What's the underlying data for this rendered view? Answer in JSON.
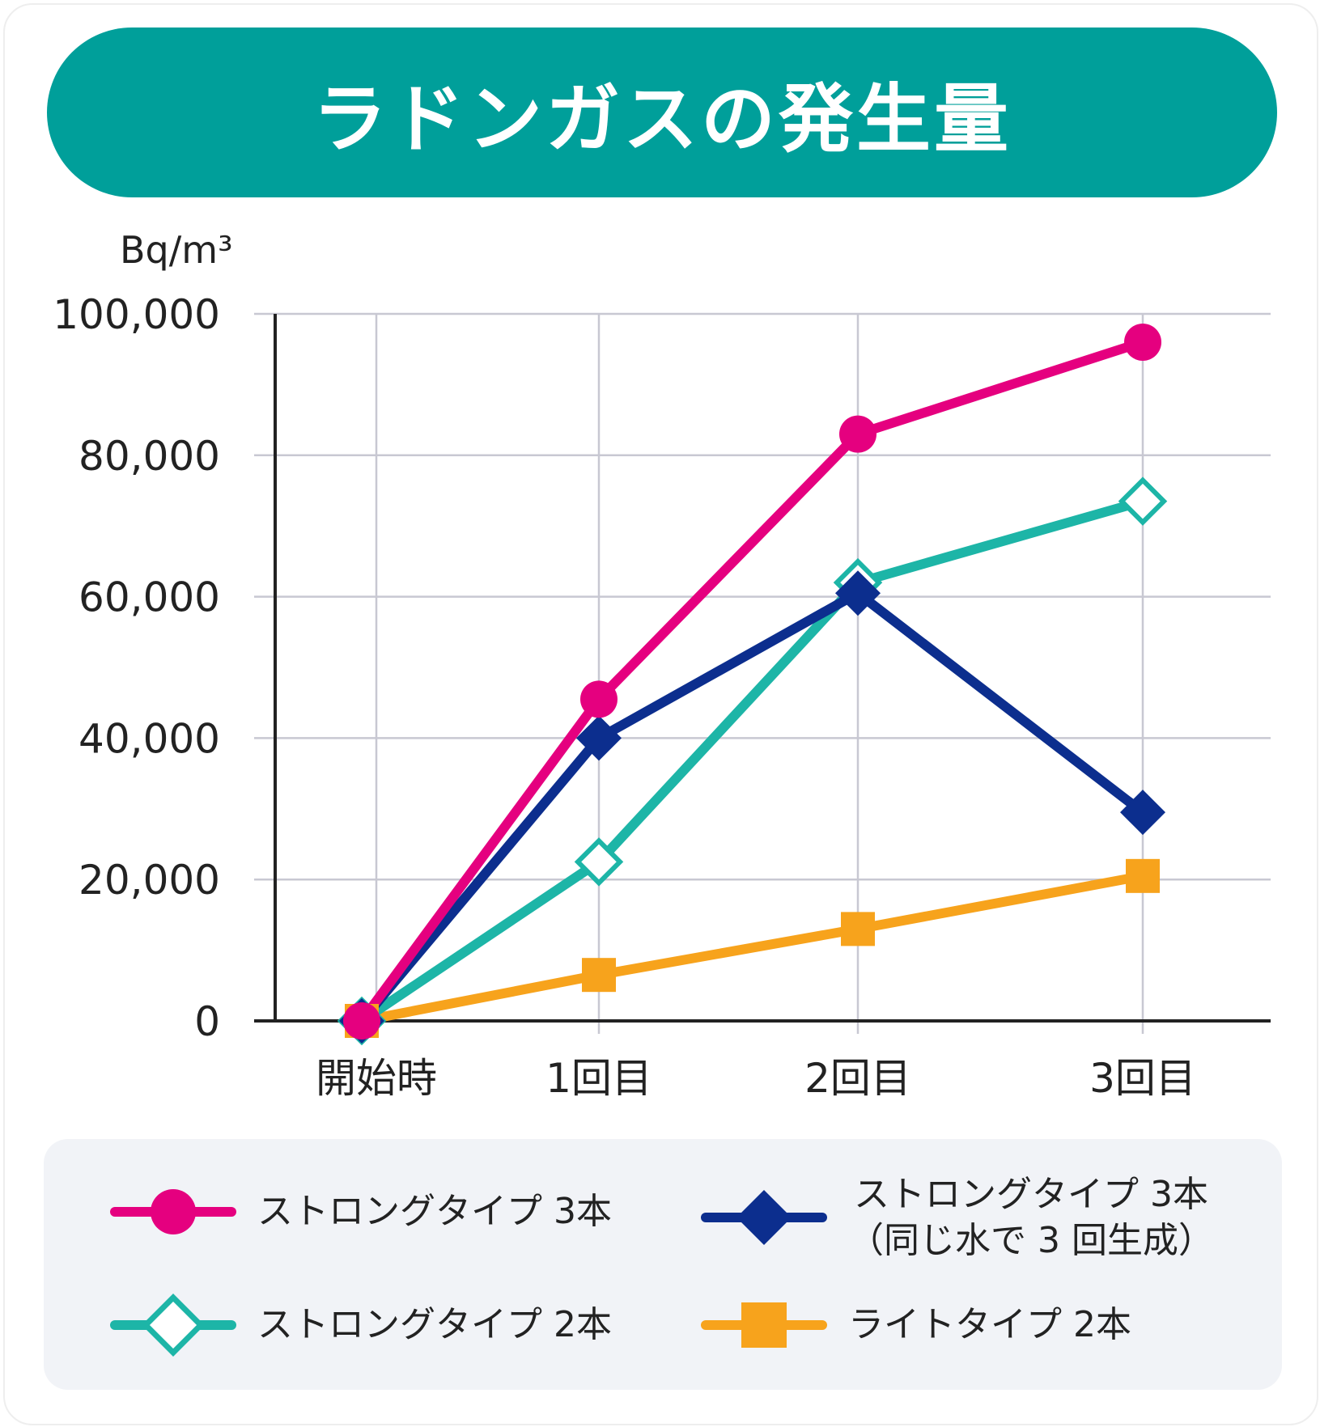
{
  "title": "ラドンガスの発生量",
  "colors": {
    "title_bg": "#009f9a",
    "strong3": "#e5007f",
    "strong2": "#1db5a7",
    "strong3_reuse": "#0c2e8e",
    "light2": "#f7a31c"
  },
  "chart_data": {
    "type": "line",
    "unit_label": "Bq/m³",
    "categories": [
      "開始時",
      "1回目",
      "2回目",
      "3回目"
    ],
    "ylim": [
      0,
      100000
    ],
    "yticks": [
      "0",
      "20,000",
      "40,000",
      "60,000",
      "80,000",
      "100,000"
    ],
    "grid": true,
    "legend_position": "bottom",
    "series": [
      {
        "name": "ストロングタイプ 3本",
        "marker": "circle",
        "color": "#e5007f",
        "values": [
          0,
          45500,
          83000,
          96000
        ]
      },
      {
        "name": "ストロングタイプ 3本（同じ水で 3 回生成）",
        "marker": "diamond-filled",
        "color": "#0c2e8e",
        "values": [
          0,
          40000,
          60500,
          29500
        ]
      },
      {
        "name": "ストロングタイプ 2本",
        "marker": "diamond-open",
        "color": "#1db5a7",
        "values": [
          0,
          22500,
          62000,
          73500
        ]
      },
      {
        "name": "ライトタイプ 2本",
        "marker": "square",
        "color": "#f7a31c",
        "values": [
          0,
          6500,
          13000,
          20500
        ]
      }
    ]
  },
  "legend": {
    "strong3": "ストロングタイプ 3本",
    "strong3_reuse_line1": "ストロングタイプ 3本",
    "strong3_reuse_line2": "（同じ水で 3 回生成）",
    "strong2": "ストロングタイプ 2本",
    "light2": "ライトタイプ 2本"
  }
}
